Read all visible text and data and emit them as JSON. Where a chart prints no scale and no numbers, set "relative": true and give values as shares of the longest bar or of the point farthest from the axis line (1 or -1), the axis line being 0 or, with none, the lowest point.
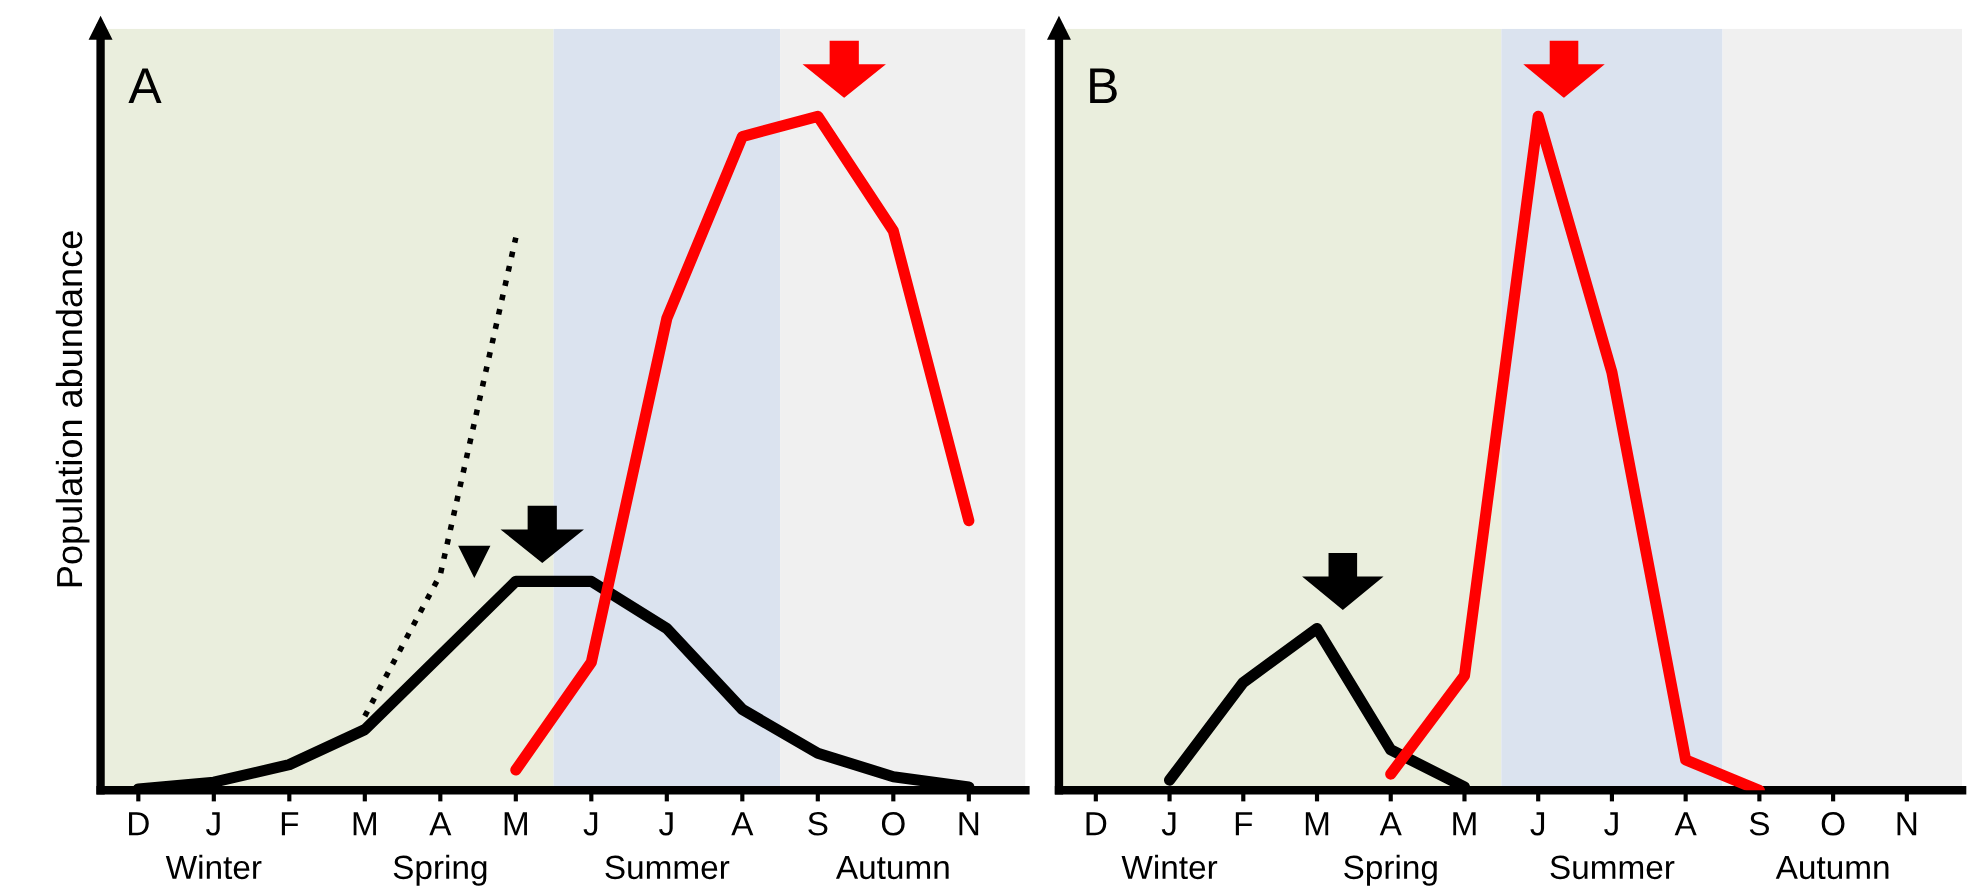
{
  "chart_data": [
    {
      "type": "line",
      "title": "A",
      "ylabel": "Population abundance",
      "relative": true,
      "categories": [
        "D",
        "J",
        "F",
        "M",
        "A",
        "M",
        "J",
        "J",
        "A",
        "S",
        "O",
        "N"
      ],
      "grid": false,
      "annotations": [
        "Winter",
        "Spring",
        "Summer",
        "Autumn"
      ],
      "series": [
        {
          "color": "#000000",
          "line_style": "solid",
          "values": [
            0.002,
            0.012,
            0.038,
            0.09,
            0.2,
            0.31,
            0.31,
            0.24,
            0.12,
            0.055,
            0.02,
            0.005
          ]
        },
        {
          "color": "#000000",
          "line_style": "dotted",
          "values": [
            null,
            null,
            null,
            0.11,
            0.32,
            0.82,
            null,
            null,
            null,
            null,
            null,
            null
          ]
        },
        {
          "color": "#ff0000",
          "line_style": "solid",
          "values": [
            null,
            null,
            null,
            null,
            null,
            0.03,
            0.19,
            0.7,
            0.97,
            1.0,
            0.83,
            0.4
          ]
        }
      ]
    },
    {
      "type": "line",
      "title": "B",
      "relative": true,
      "categories": [
        "D",
        "J",
        "F",
        "M",
        "A",
        "M",
        "J",
        "J",
        "A",
        "S",
        "O",
        "N"
      ],
      "grid": false,
      "annotations": [
        "Winter",
        "Spring",
        "Summer",
        "Autumn"
      ],
      "series": [
        {
          "color": "#000000",
          "line_style": "solid",
          "values": [
            null,
            0.015,
            0.16,
            0.24,
            0.06,
            0.005,
            null,
            null,
            null,
            null,
            null,
            null
          ]
        },
        {
          "color": "#ff0000",
          "line_style": "solid",
          "values": [
            null,
            null,
            null,
            null,
            0.024,
            0.17,
            1.0,
            0.62,
            0.045,
            0.0,
            null,
            null
          ]
        }
      ]
    }
  ]
}
